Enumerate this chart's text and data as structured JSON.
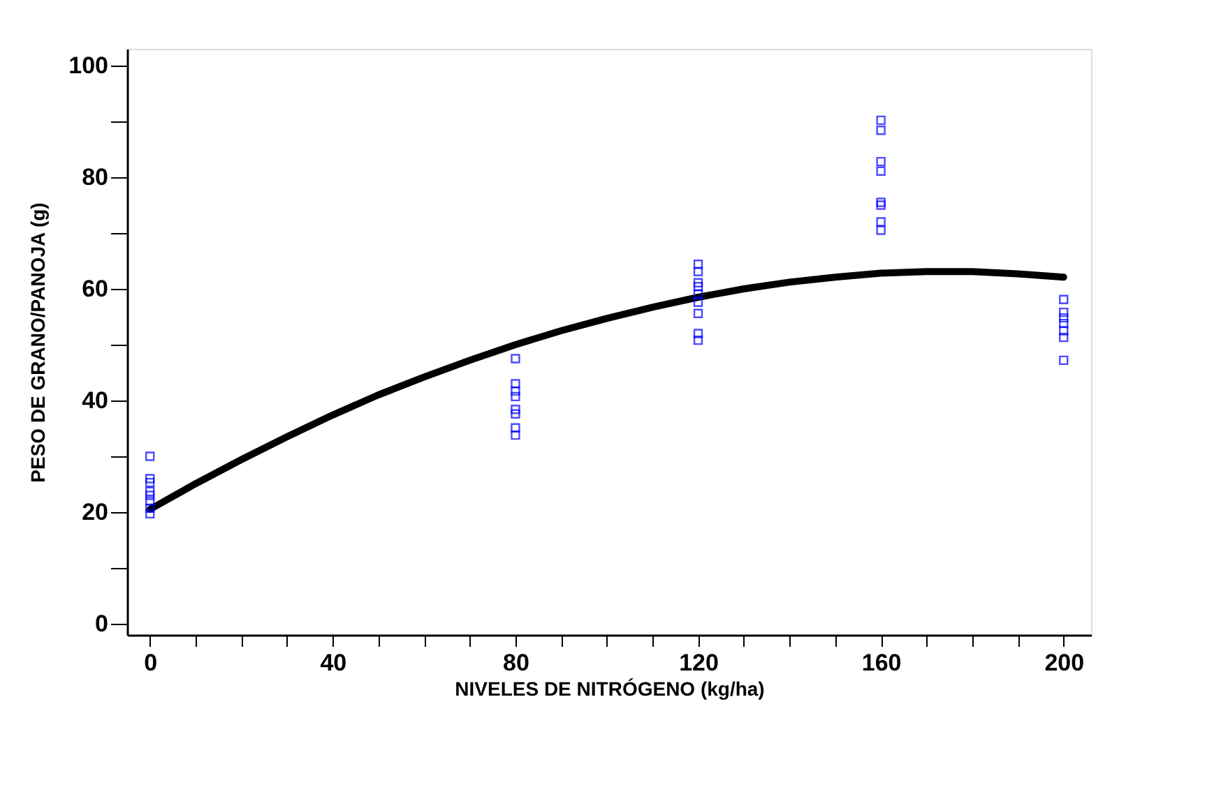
{
  "chart_data": {
    "type": "scatter",
    "xlabel": "NIVELES DE NITRÓGENO (kg/ha)",
    "ylabel": "PESO DE GRANO/PANOJA (g)",
    "xlim": [
      -5,
      206
    ],
    "ylim": [
      -2,
      103
    ],
    "xticks": [
      0,
      {
        "value": 10,
        "label": null
      },
      {
        "value": 20,
        "label": null
      },
      {
        "value": 30,
        "label": null
      },
      40,
      {
        "value": 50,
        "label": null
      },
      {
        "value": 60,
        "label": null
      },
      {
        "value": 70,
        "label": null
      },
      80,
      {
        "value": 90,
        "label": null
      },
      {
        "value": 100,
        "label": null
      },
      {
        "value": 110,
        "label": null
      },
      120,
      {
        "value": 130,
        "label": null
      },
      {
        "value": 140,
        "label": null
      },
      {
        "value": 150,
        "label": null
      },
      160,
      {
        "value": 170,
        "label": null
      },
      {
        "value": 180,
        "label": null
      },
      {
        "value": 190,
        "label": null
      },
      200
    ],
    "yticks": [
      0,
      {
        "value": 10,
        "label": null
      },
      20,
      {
        "value": 30,
        "label": null
      },
      40,
      {
        "value": 50,
        "label": null
      },
      60,
      {
        "value": 70,
        "label": null
      },
      80,
      {
        "value": 90,
        "label": null
      },
      100
    ],
    "grid": false,
    "series": [
      {
        "marker": "square",
        "color": "#0000ff",
        "x": [
          0,
          0,
          0,
          0,
          0,
          0,
          0,
          0,
          80,
          80,
          80,
          80,
          80,
          80,
          80,
          80,
          120,
          120,
          120,
          120,
          120,
          120,
          120,
          120,
          120,
          160,
          160,
          160,
          160,
          160,
          160,
          160,
          160,
          200,
          200,
          200,
          200,
          200,
          200,
          200
        ],
        "values": [
          30.0,
          26.0,
          25.3,
          23.7,
          23.0,
          22.0,
          20.7,
          19.7,
          47.5,
          43.0,
          41.7,
          40.7,
          38.4,
          37.6,
          35.1,
          33.8,
          64.4,
          63.1,
          61.1,
          60.4,
          59.1,
          57.6,
          55.6,
          52.0,
          50.8,
          90.2,
          88.4,
          82.8,
          81.1,
          75.5,
          75.0,
          72.0,
          70.5,
          58.1,
          55.8,
          54.8,
          53.8,
          52.5,
          51.3,
          47.2
        ]
      },
      {
        "type": "line",
        "line_style": "solid",
        "color": "#000000",
        "x": [
          0,
          10,
          20,
          30,
          40,
          50,
          60,
          70,
          80,
          90,
          100,
          110,
          120,
          130,
          140,
          150,
          160,
          170,
          180,
          190,
          200
        ],
        "values": [
          20.5,
          25.1,
          29.4,
          33.5,
          37.4,
          41.0,
          44.2,
          47.2,
          50.0,
          52.5,
          54.7,
          56.7,
          58.5,
          60.0,
          61.2,
          62.1,
          62.8,
          63.1,
          63.1,
          62.7,
          62.1
        ]
      }
    ]
  }
}
